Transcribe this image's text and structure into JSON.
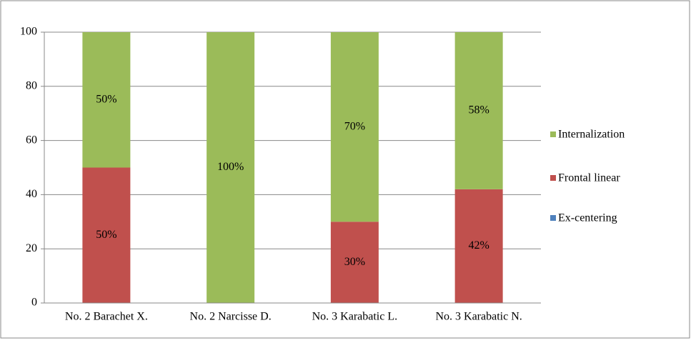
{
  "chart_data": {
    "type": "stacked_bar",
    "categories": [
      "No. 2 Barachet X.",
      "No. 2 Narcisse D.",
      "No. 3 Karabatic L.",
      "No. 3 Karabatic N."
    ],
    "series": [
      {
        "name": "Ex-centering",
        "color": "#4f81bd",
        "values": [
          0,
          0,
          0,
          0
        ]
      },
      {
        "name": "Frontal linear",
        "color": "#c0504d",
        "values": [
          50,
          0,
          30,
          42
        ],
        "value_labels": [
          "50%",
          null,
          "30%",
          "42%"
        ]
      },
      {
        "name": "Internalization",
        "color": "#9bbb59",
        "values": [
          50,
          100,
          70,
          58
        ],
        "value_labels": [
          "50%",
          "100%",
          "70%",
          "58%"
        ]
      }
    ],
    "ylim": [
      0,
      100
    ],
    "yticks": [
      0,
      20,
      40,
      60,
      80,
      100
    ],
    "grid": true,
    "legend": "right"
  }
}
